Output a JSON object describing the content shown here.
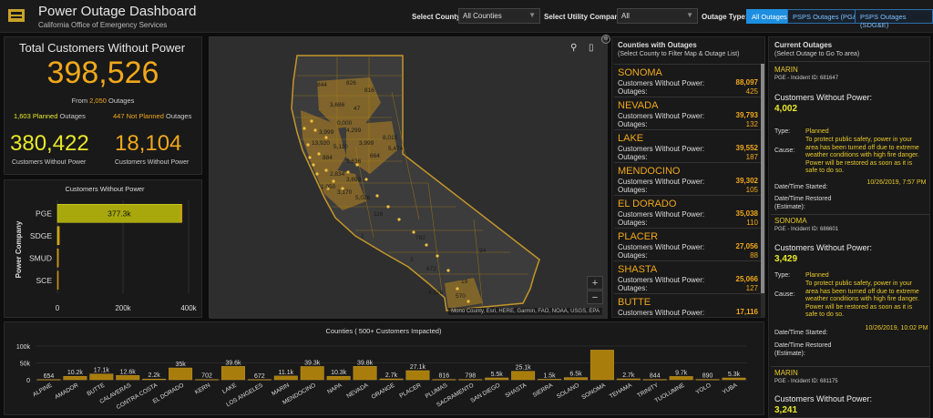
{
  "header": {
    "title": "Power Outage Dashboard",
    "subtitle": "California Office of Emergency Services",
    "county_label": "Select County:",
    "county_value": "All Counties",
    "utility_label": "Select Utility Company",
    "utility_value": "All",
    "outage_type_label": "Outage Type:",
    "outage_buttons": [
      "All Outages",
      "PSPS Outages (PG&E)",
      "PSPS Outages (SDG&E)"
    ]
  },
  "summary": {
    "title": "Total Customers Without Power",
    "total": "398,526",
    "from_prefix": "From",
    "outage_count": "2,050",
    "from_suffix": "Outages",
    "planned_count": "1,603",
    "planned_label": "Planned",
    "planned_suffix": "Outages",
    "notplanned_count": "447",
    "notplanned_label": "Not Planned",
    "notplanned_suffix": "Outages",
    "planned_customers": "380,422",
    "notplanned_customers": "18,104",
    "customers_label": "Customers Without Power"
  },
  "company_chart": {
    "title": "Customers Without Power",
    "ylabel": "Power Company",
    "categories": [
      "PGE",
      "SDGE",
      "SMUD",
      "SCE"
    ],
    "planned": [
      377300,
      3100,
      300,
      0
    ],
    "notplanned": [
      2500,
      900,
      600,
      200
    ],
    "bar_label": "377.3k",
    "ticks": [
      "0",
      "200k",
      "400k"
    ],
    "xlim": [
      0,
      400000
    ]
  },
  "map": {
    "attribution": "Mono County, Esri, HERE, Garmin, FAO, NOAA, USGS, EPA",
    "zoom_in": "+",
    "zoom_out": "−",
    "labels": [
      "844",
      "826",
      "816",
      "3,686",
      "47",
      "0,000",
      "3,999",
      "4,299",
      "13,920",
      "5,110",
      "3,999",
      "8,015",
      "884",
      "9,636",
      "664",
      "5,474",
      "2,834",
      "3,699",
      "1,050",
      "3,170",
      "5,026",
      "116",
      "1",
      "782",
      "94",
      "3",
      "672",
      "19",
      "570",
      "4,526"
    ]
  },
  "counties_panel": {
    "title": "Counties with Outages",
    "subtitle": "(Select County to Filter Map & Outage List)",
    "customers_label": "Customers Without Power:",
    "outages_label": "Outages:",
    "items": [
      {
        "name": "SONOMA",
        "customers": "88,097",
        "outages": "425"
      },
      {
        "name": "NEVADA",
        "customers": "39,793",
        "outages": "132"
      },
      {
        "name": "LAKE",
        "customers": "39,552",
        "outages": "187"
      },
      {
        "name": "MENDOCINO",
        "customers": "39,302",
        "outages": "105"
      },
      {
        "name": "EL DORADO",
        "customers": "35,038",
        "outages": "110"
      },
      {
        "name": "PLACER",
        "customers": "27,056",
        "outages": "88"
      },
      {
        "name": "SHASTA",
        "customers": "25,066",
        "outages": "127"
      },
      {
        "name": "BUTTE",
        "customers": "17,116",
        "outages": ""
      }
    ]
  },
  "current_panel": {
    "title": "Current Outages",
    "subtitle": "(Select Outage to Go To area)",
    "cwp_label": "Customers Without Power:",
    "type_label": "Type:",
    "cause_label": "Cause:",
    "started_label": "Date/Time Started:",
    "restored_label": "Date/Time Restored (Estimate):",
    "items": [
      {
        "county": "MARIN",
        "incident": "PGE - Incident ID: 681647",
        "customers": "4,002",
        "type": "Planned",
        "cause": "To protect public safety, power in your area has been turned off due to extreme weather conditions with high fire danger. Power will be restored as soon as it is safe to do so.",
        "started": "10/26/2019, 7:57 PM"
      },
      {
        "county": "SONOMA",
        "incident": "PGE - Incident ID: 686601",
        "customers": "3,429",
        "type": "Planned",
        "cause": "To protect public safety, power in your area has been turned off due to extreme weather conditions with high fire danger. Power will be restored as soon as it is safe to do so.",
        "started": "10/26/2019, 10:02 PM"
      },
      {
        "county": "MARIN",
        "incident": "PGE - Incident ID: 681175",
        "customers": "3,241"
      }
    ]
  },
  "county_chart": {
    "type": "bar",
    "title": "Counties ( 500+ Customers Impacted)",
    "categories": [
      "ALPINE",
      "AMADOR",
      "BUTTE",
      "CALAVERAS",
      "CONTRA COSTA",
      "EL DORADO",
      "KERN",
      "LAKE",
      "LOS ANGELES",
      "MARIN",
      "MENDOCINO",
      "NAPA",
      "NEVADA",
      "ORANGE",
      "PLACER",
      "PLUMAS",
      "SACRAMENTO",
      "SAN DIEGO",
      "SHASTA",
      "SIERRA",
      "SOLANO",
      "SONOMA",
      "TEHAMA",
      "TRINITY",
      "TUOLUMNE",
      "YOLO",
      "YUBA"
    ],
    "values": [
      654,
      10200,
      17100,
      12600,
      2200,
      35000,
      702,
      39600,
      672,
      11100,
      39300,
      10300,
      39800,
      2700,
      27100,
      816,
      798,
      5500,
      25100,
      1500,
      6500,
      88100,
      2700,
      844,
      9700,
      890,
      5300
    ],
    "labels": [
      "654",
      "10.2k",
      "17.1k",
      "12.6k",
      "2.2k",
      "35k",
      "702",
      "39.6k",
      "672",
      "11.1k",
      "39.3k",
      "10.3k",
      "39.8k",
      "2.7k",
      "27.1k",
      "816",
      "798",
      "5.5k",
      "25.1k",
      "1.5k",
      "6.5k",
      "",
      "2.7k",
      "844",
      "9.7k",
      "890",
      "5.3k"
    ],
    "yticks": [
      "100k",
      "50k",
      "0"
    ],
    "ylim": [
      0,
      100000
    ]
  },
  "colors": {
    "accent": "#f0a81c",
    "bar_fill": "#a87d0c",
    "bar_pge": "#a8a80c",
    "button_blue": "#1e8fe0"
  }
}
